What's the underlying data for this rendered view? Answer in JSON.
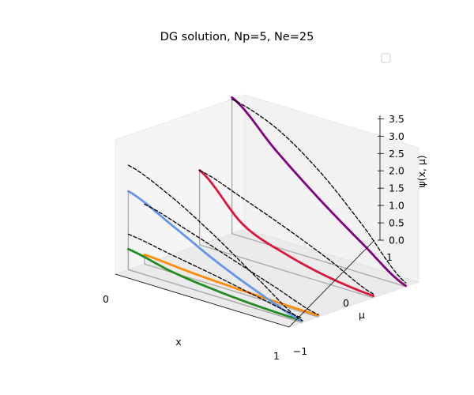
{
  "chart_data": {
    "type": "line",
    "title": "DG solution, Np=5, Ne=25",
    "xlabel": "x",
    "ylabel": "μ",
    "zlabel": "ψ(x, μ)",
    "x_ticks": [
      "0",
      "1"
    ],
    "mu_ticks": [
      "−1",
      "0",
      "1"
    ],
    "z_ticks": [
      "0.0",
      "0.5",
      "1.0",
      "1.5",
      "2.0",
      "2.5",
      "3.0",
      "3.5"
    ],
    "xlim": [
      0,
      1
    ],
    "mulim": [
      -1,
      1
    ],
    "zlim": [
      0,
      3.6
    ],
    "legend": "top-right (empty)",
    "grid": false,
    "series": [
      {
        "color": "#228b22",
        "style": "solid",
        "mu": -0.8,
        "x": [
          0,
          0.25,
          0.5,
          0.75,
          1.0
        ],
        "y": [
          0.55,
          0.3,
          0.16,
          0.08,
          0.05
        ]
      },
      {
        "color": "#ff8c00",
        "style": "solid",
        "mu": -0.55,
        "x": [
          0,
          0.25,
          0.5,
          0.75,
          1.0
        ],
        "y": [
          0.25,
          0.16,
          0.1,
          0.06,
          0.04
        ]
      },
      {
        "color": "#6495ed",
        "style": "solid",
        "mu": -0.8,
        "x": [
          0,
          0.25,
          0.5,
          0.75,
          1.0
        ],
        "y": [
          2.1,
          1.55,
          0.95,
          0.45,
          0.05
        ]
      },
      {
        "color": "#dc143c",
        "style": "solid",
        "mu": 0.3,
        "x": [
          0,
          0.25,
          0.5,
          0.75,
          1.0
        ],
        "y": [
          2.0,
          0.9,
          0.45,
          0.18,
          0.05
        ]
      },
      {
        "color": "#800080",
        "style": "solid",
        "mu": 0.8,
        "x": [
          0,
          0.25,
          0.5,
          0.75,
          1.0
        ],
        "y": [
          3.65,
          2.6,
          1.65,
          0.8,
          0.02
        ]
      },
      {
        "color": "#000000",
        "style": "dashed",
        "mu": -0.8,
        "x": [
          0,
          0.25,
          0.5,
          0.75,
          1.0
        ],
        "y": [
          0.95,
          0.75,
          0.55,
          0.32,
          0.12
        ]
      },
      {
        "color": "#000000",
        "style": "dashed",
        "mu": -0.55,
        "x": [
          0,
          0.25,
          0.5,
          0.75,
          1.0
        ],
        "y": [
          1.6,
          1.25,
          0.85,
          0.45,
          0.06
        ]
      },
      {
        "color": "#000000",
        "style": "dashed",
        "mu": -0.8,
        "x": [
          0,
          0.25,
          0.5,
          0.75,
          1.0
        ],
        "y": [
          2.8,
          2.3,
          1.6,
          0.8,
          0.05
        ]
      },
      {
        "color": "#000000",
        "style": "dashed",
        "mu": 0.3,
        "x": [
          0,
          0.25,
          0.5,
          0.75,
          1.0
        ],
        "y": [
          2.0,
          1.6,
          1.15,
          0.65,
          0.1
        ]
      },
      {
        "color": "#000000",
        "style": "dashed",
        "mu": 0.8,
        "x": [
          0,
          0.25,
          0.5,
          0.75,
          1.0
        ],
        "y": [
          3.6,
          3.2,
          2.4,
          1.3,
          0.1
        ]
      }
    ]
  }
}
